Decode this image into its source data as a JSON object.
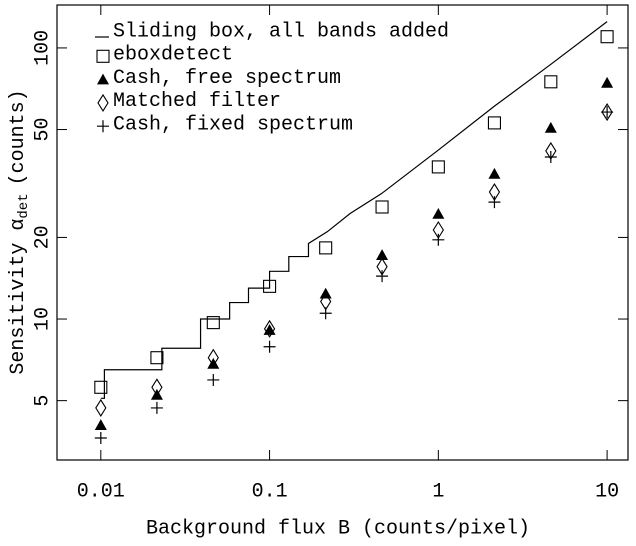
{
  "chart_data": {
    "type": "scatter",
    "xlabel": "Background flux B (counts/pixel)",
    "ylabel": "Sensitivity α",
    "ylabel_sub": "det",
    "ylabel_unit": "(counts)",
    "xscale": "log",
    "yscale": "log",
    "xlim": [
      0.0055,
      13.3
    ],
    "ylim": [
      3.02,
      144
    ],
    "xticks": [
      0.01,
      0.1,
      1,
      10
    ],
    "yticks": [
      5,
      10,
      20,
      50,
      100
    ],
    "legend": "upper left",
    "series": [
      {
        "name": "Sliding box, all bands added",
        "marker": "line",
        "color": "#000000",
        "x": [
          0.01,
          0.0105,
          0.0105,
          0.023,
          0.023,
          0.039,
          0.039,
          0.058,
          0.058,
          0.075,
          0.075,
          0.1,
          0.1,
          0.13,
          0.13,
          0.17,
          0.17,
          0.22,
          0.3,
          0.46,
          1,
          2.15,
          4.64,
          10
        ],
        "values": [
          5.1,
          5.1,
          6.5,
          6.5,
          7.8,
          7.8,
          10,
          10,
          11.5,
          11.5,
          13,
          13,
          15,
          15,
          17,
          17,
          19,
          21,
          24.5,
          29,
          42,
          61,
          87,
          125
        ]
      },
      {
        "name": "eboxdetect",
        "marker": "square",
        "color": "#000000",
        "x": [
          0.01,
          0.0215,
          0.0464,
          0.1,
          0.215,
          0.464,
          1,
          2.15,
          4.64,
          10
        ],
        "values": [
          5.6,
          7.2,
          9.7,
          13.2,
          18.3,
          25.9,
          36.4,
          52.9,
          75,
          110
        ]
      },
      {
        "name": "Cash, free spectrum",
        "marker": "triangle",
        "color": "#000000",
        "x": [
          0.01,
          0.0215,
          0.0464,
          0.1,
          0.215,
          0.464,
          1,
          2.15,
          4.64,
          10
        ],
        "values": [
          4.06,
          5.25,
          6.83,
          9.1,
          12.4,
          17.2,
          24.4,
          34.3,
          50.7,
          74.3
        ]
      },
      {
        "name": "Matched filter",
        "marker": "diamond",
        "color": "#000000",
        "x": [
          0.01,
          0.0215,
          0.0464,
          0.1,
          0.215,
          0.464,
          1,
          2.15,
          4.64,
          10
        ],
        "values": [
          4.7,
          5.6,
          7.2,
          9.2,
          11.6,
          15.6,
          21.3,
          29.4,
          41.7,
          58
        ]
      },
      {
        "name": "Cash, fixed spectrum",
        "marker": "plus",
        "color": "#000000",
        "x": [
          0.01,
          0.0215,
          0.0464,
          0.1,
          0.215,
          0.464,
          1,
          2.15,
          4.64,
          10
        ],
        "values": [
          3.64,
          4.7,
          5.96,
          7.9,
          10.5,
          14.4,
          19.6,
          27,
          39.6,
          58
        ]
      }
    ]
  }
}
